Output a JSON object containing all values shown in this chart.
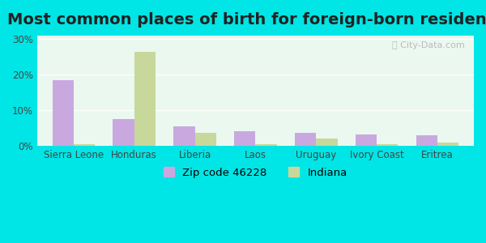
{
  "title": "Most common places of birth for foreign-born residents",
  "categories": [
    "Sierra Leone",
    "Honduras",
    "Liberia",
    "Laos",
    "Uruguay",
    "Ivory Coast",
    "Eritrea"
  ],
  "zip_values": [
    18.5,
    7.5,
    5.5,
    4.0,
    3.5,
    3.2,
    3.0
  ],
  "indiana_values": [
    0.4,
    26.5,
    3.5,
    0.5,
    2.0,
    0.4,
    0.8
  ],
  "zip_color": "#c9a8e0",
  "indiana_color": "#c8d89a",
  "background_outer": "#00e5e5",
  "background_inner": "#eaf8f0",
  "ylabel_ticks": [
    "0%",
    "10%",
    "20%",
    "30%"
  ],
  "yticks": [
    0,
    10,
    20,
    30
  ],
  "ylim": [
    0,
    31
  ],
  "legend_zip": "Zip code 46228",
  "legend_indiana": "Indiana",
  "bar_width": 0.35,
  "title_fontsize": 14,
  "tick_fontsize": 8.5,
  "legend_fontsize": 9.5
}
